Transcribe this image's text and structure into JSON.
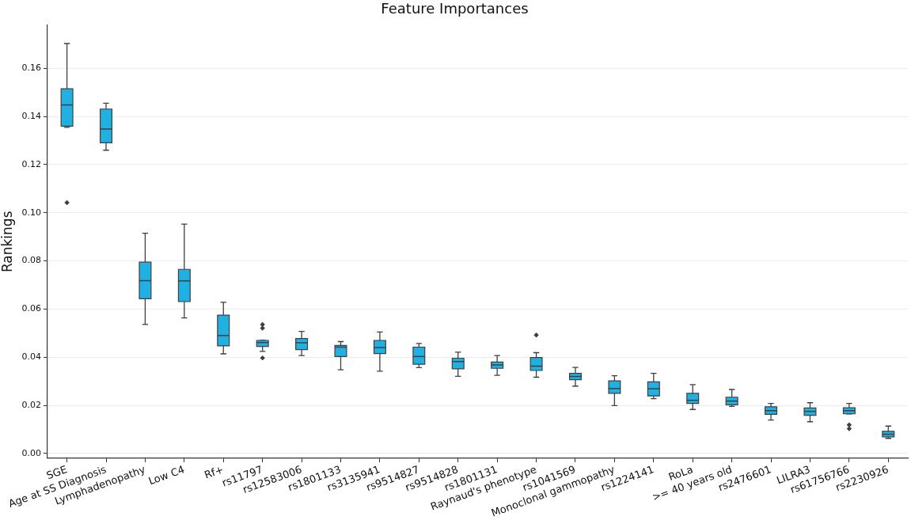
{
  "chart_data": {
    "type": "box",
    "title": "Feature Importances",
    "ylabel": "Rankings",
    "categories": [
      "SGE",
      "Age at SS Diagnosis",
      "Lymphadenopathy",
      "Low C4",
      "Rf+",
      "rs11797",
      "rs12583006",
      "rs1801133",
      "rs3135941",
      "rs9514827",
      "rs9514828",
      "rs1801131",
      "Raynaud's phenotype",
      "rs1041569",
      "Monoclonal gammopathy",
      "rs1224141",
      "RoLa",
      ">= 40 years old",
      "rs2476601",
      "LILRA3",
      "rs61756766",
      "rs2230926"
    ],
    "boxes": [
      {
        "low": 0.1355,
        "q1": 0.136,
        "median": 0.1448,
        "q3": 0.1515,
        "high": 0.1703,
        "outliers": [
          0.1042
        ]
      },
      {
        "low": 0.126,
        "q1": 0.1291,
        "median": 0.1348,
        "q3": 0.1431,
        "high": 0.1455
      },
      {
        "low": 0.0536,
        "q1": 0.0643,
        "median": 0.0718,
        "q3": 0.0795,
        "high": 0.0915
      },
      {
        "low": 0.0563,
        "q1": 0.0631,
        "median": 0.0717,
        "q3": 0.0765,
        "high": 0.0953
      },
      {
        "low": 0.0414,
        "q1": 0.0447,
        "median": 0.049,
        "q3": 0.0575,
        "high": 0.0628
      },
      {
        "low": 0.0424,
        "q1": 0.0445,
        "median": 0.0461,
        "q3": 0.047,
        "high": 0.047,
        "outliers": [
          0.0536,
          0.0521,
          0.0397
        ]
      },
      {
        "low": 0.0407,
        "q1": 0.0432,
        "median": 0.046,
        "q3": 0.0478,
        "high": 0.0507
      },
      {
        "low": 0.0348,
        "q1": 0.0403,
        "median": 0.0442,
        "q3": 0.0449,
        "high": 0.0465
      },
      {
        "low": 0.0342,
        "q1": 0.0415,
        "median": 0.044,
        "q3": 0.047,
        "high": 0.0505
      },
      {
        "low": 0.0357,
        "q1": 0.0371,
        "median": 0.0403,
        "q3": 0.0442,
        "high": 0.0457
      },
      {
        "low": 0.0321,
        "q1": 0.0352,
        "median": 0.0382,
        "q3": 0.0396,
        "high": 0.0421
      },
      {
        "low": 0.0325,
        "q1": 0.0354,
        "median": 0.0368,
        "q3": 0.038,
        "high": 0.0407
      },
      {
        "low": 0.0317,
        "q1": 0.0345,
        "median": 0.0363,
        "q3": 0.0399,
        "high": 0.0419,
        "outliers": [
          0.0492
        ]
      },
      {
        "low": 0.028,
        "q1": 0.0307,
        "median": 0.032,
        "q3": 0.0333,
        "high": 0.0358
      },
      {
        "low": 0.0199,
        "q1": 0.025,
        "median": 0.027,
        "q3": 0.0302,
        "high": 0.0323
      },
      {
        "low": 0.0228,
        "q1": 0.0239,
        "median": 0.0269,
        "q3": 0.0298,
        "high": 0.0333
      },
      {
        "low": 0.0183,
        "q1": 0.0208,
        "median": 0.0221,
        "q3": 0.025,
        "high": 0.0286
      },
      {
        "low": 0.0196,
        "q1": 0.0202,
        "median": 0.0218,
        "q3": 0.0234,
        "high": 0.0266
      },
      {
        "low": 0.0139,
        "q1": 0.0163,
        "median": 0.0178,
        "q3": 0.0194,
        "high": 0.0208
      },
      {
        "low": 0.0132,
        "q1": 0.0159,
        "median": 0.0175,
        "q3": 0.0189,
        "high": 0.0211
      },
      {
        "low": 0.0165,
        "q1": 0.0165,
        "median": 0.0178,
        "q3": 0.019,
        "high": 0.0208,
        "outliers": [
          0.0119,
          0.0103
        ]
      },
      {
        "low": 0.0063,
        "q1": 0.0069,
        "median": 0.008,
        "q3": 0.0092,
        "high": 0.0114
      }
    ],
    "color": "#20b1e2",
    "ylim": [
      -0.002,
      0.178
    ],
    "yticks": [
      {
        "value": 0,
        "label": "0.00"
      },
      {
        "value": 0.02,
        "label": "0.02"
      },
      {
        "value": 0.04,
        "label": "0.04"
      },
      {
        "value": 0.06,
        "label": "0.06"
      },
      {
        "value": 0.08,
        "label": "0.08"
      },
      {
        "value": 0.1,
        "label": "0.10"
      },
      {
        "value": 0.12,
        "label": "0.12"
      },
      {
        "value": 0.14,
        "label": "0.14"
      },
      {
        "value": 0.16,
        "label": "0.16"
      }
    ],
    "grid": "y"
  }
}
